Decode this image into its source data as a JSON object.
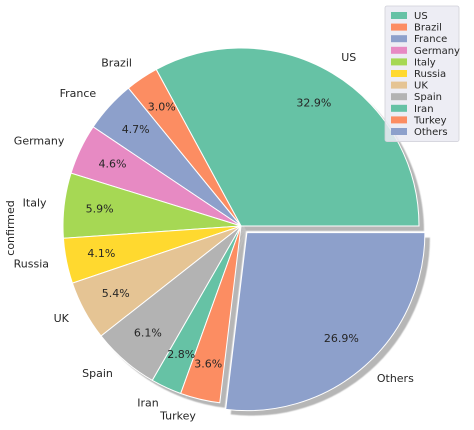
{
  "chart_data": {
    "type": "pie",
    "ylabel": "confirmed",
    "start_angle_deg": 0,
    "direction": "counterclockwise",
    "categories": [
      "US",
      "Brazil",
      "France",
      "Germany",
      "Italy",
      "Russia",
      "UK",
      "Spain",
      "Iran",
      "Turkey",
      "Others"
    ],
    "values": [
      32.9,
      3.0,
      4.7,
      4.6,
      5.9,
      4.1,
      5.4,
      6.1,
      2.8,
      3.6,
      26.9
    ],
    "pct_labels": [
      "32.9%",
      "3.0%",
      "4.7%",
      "4.6%",
      "5.9%",
      "4.1%",
      "5.4%",
      "6.1%",
      "2.8%",
      "3.6%",
      "26.9%"
    ],
    "explode": [
      0,
      0,
      0,
      0,
      0,
      0,
      0,
      0,
      0,
      0,
      0.05
    ],
    "shadow": true,
    "colors": [
      "#66c2a5",
      "#fc8d62",
      "#8da0cb",
      "#e78ac3",
      "#a6d854",
      "#ffd92f",
      "#e5c494",
      "#b3b3b3",
      "#66c2a5",
      "#fc8d62",
      "#8da0cb"
    ],
    "legend": {
      "placement": "upper right",
      "entries": [
        "US",
        "Brazil",
        "France",
        "Germany",
        "Italy",
        "Russia",
        "UK",
        "Spain",
        "Iran",
        "Turkey",
        "Others"
      ]
    }
  }
}
